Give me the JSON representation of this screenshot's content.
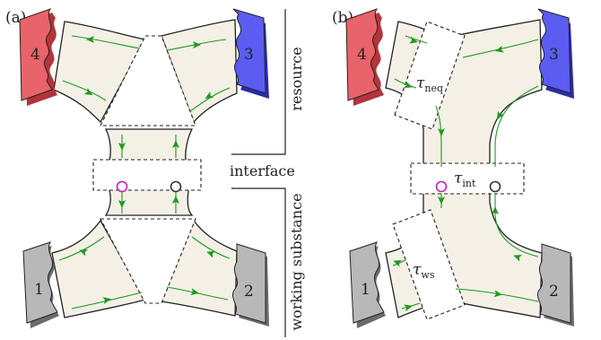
{
  "panels": [
    {
      "letter": "(a)"
    },
    {
      "letter": "(b)"
    }
  ],
  "contacts": [
    "1",
    "2",
    "3",
    "4"
  ],
  "colors": {
    "contact_red": "#e9636a",
    "contact_red_side": "#b3343a",
    "contact_blue": "#5a5cf2",
    "contact_blue_side": "#2b2ca8",
    "contact_gray": "#b8b8b8",
    "contact_gray_side": "#6b6b6b",
    "region_fill": "#f4f0e6",
    "flow": "#1e9a1e",
    "probe_left": "#c21cc2",
    "probe_right": "#333333"
  },
  "side_labels": {
    "top": "resource",
    "middle": "interface",
    "bottom": "working substance"
  },
  "taus": {
    "neq": {
      "symbol": "τ",
      "sub": "neq"
    },
    "int": {
      "symbol": "τ",
      "sub": "int"
    },
    "ws": {
      "symbol": "τ",
      "sub": "ws"
    }
  }
}
